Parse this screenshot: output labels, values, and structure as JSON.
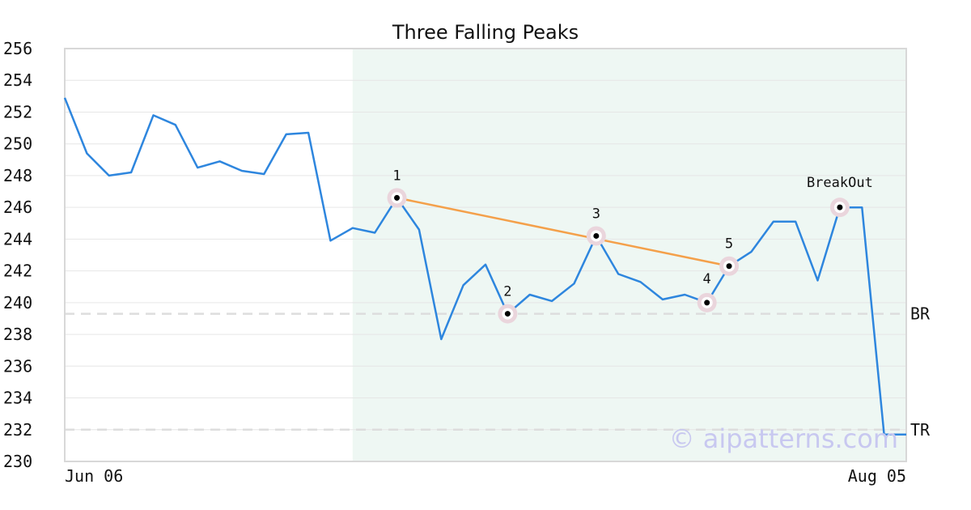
{
  "chart_data": {
    "type": "line",
    "title": "Three Falling Peaks",
    "xlabel": "",
    "ylabel": "",
    "ylim": [
      230,
      256
    ],
    "y_ticks": [
      "230",
      "232",
      "234",
      "236",
      "238",
      "240",
      "242",
      "244",
      "246",
      "248",
      "250",
      "252",
      "254",
      "256"
    ],
    "x_tick_labels": [
      "Jun 06",
      "Aug 05"
    ],
    "grid": "horizontal",
    "highlight_range": [
      13,
      38
    ],
    "series": [
      {
        "color": "#2e86de",
        "values": [
          252.9,
          249.4,
          248.0,
          248.2,
          251.8,
          251.2,
          248.5,
          248.9,
          248.3,
          248.1,
          250.6,
          250.7,
          243.9,
          244.7,
          244.4,
          246.6,
          244.6,
          237.7,
          241.1,
          242.4,
          239.3,
          240.5,
          240.1,
          241.2,
          244.2,
          241.8,
          241.3,
          240.2,
          240.5,
          240.0,
          242.3,
          243.2,
          245.1,
          245.1,
          241.4,
          246.0,
          246.0,
          231.7,
          231.7
        ]
      }
    ],
    "pattern_points": [
      {
        "label": "1",
        "x": 15,
        "y": 246.6
      },
      {
        "label": "2",
        "x": 20,
        "y": 239.3
      },
      {
        "label": "3",
        "x": 24,
        "y": 244.2
      },
      {
        "label": "4",
        "x": 29,
        "y": 240.0
      },
      {
        "label": "5",
        "x": 30,
        "y": 242.3
      },
      {
        "label": "BreakOut",
        "x": 35,
        "y": 246.0
      }
    ],
    "trend_line": {
      "from": 15,
      "to": 30,
      "color": "#f4a04a"
    },
    "levels": [
      {
        "label": "BR",
        "y": 239.3
      },
      {
        "label": "TR",
        "y": 232.0
      }
    ],
    "watermark": "© aipatterns.com",
    "colors": {
      "line": "#2e86de",
      "trend": "#f4a04a",
      "highlight": "#eef7f3",
      "marker_halo": "#ead5dc",
      "grid": "#e6e6e6",
      "level": "#dddddd"
    }
  }
}
